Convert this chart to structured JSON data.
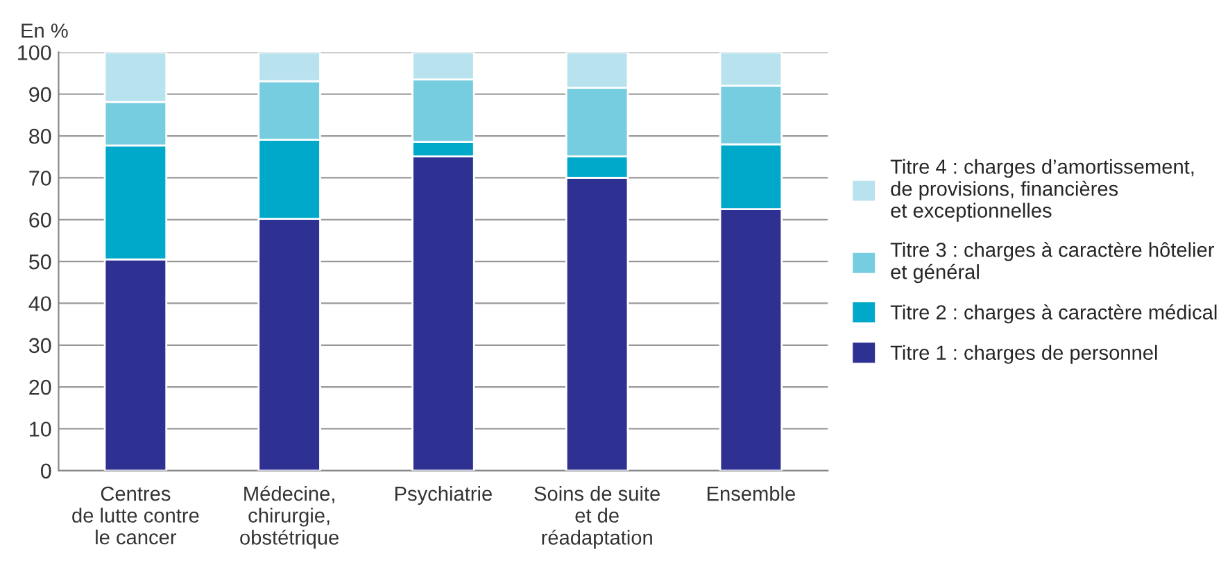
{
  "chart_data": {
    "type": "bar",
    "stacked": true,
    "ylabel": "En %",
    "categories": [
      "Centres\nde lutte contre\nle cancer",
      "Médecine,\nchirurgie,\nobstétrique",
      "Psychiatrie",
      "Soins de suite\net de\nréadaptation",
      "Ensemble"
    ],
    "series": [
      {
        "name": "Titre 1 : charges de personnel",
        "color": "#2e3192",
        "values": [
          50.5,
          60.2,
          75.1,
          70.0,
          62.5
        ]
      },
      {
        "name": "Titre 2 : charges à caractère médical",
        "color": "#00a9c9",
        "values": [
          27.2,
          18.9,
          3.5,
          5.1,
          15.5
        ]
      },
      {
        "name": "Titre 3 : charges à caractère hôtelier\net général",
        "color": "#77cde0",
        "values": [
          10.4,
          14.0,
          14.9,
          16.4,
          14.0
        ]
      },
      {
        "name": "Titre 4 : charges d’amortissement,\nde provisions, financières\net exceptionnelles",
        "color": "#b9e2ef",
        "values": [
          11.9,
          6.9,
          6.5,
          8.5,
          8.0
        ]
      }
    ],
    "ylim": [
      0,
      100
    ],
    "yticks": [
      0,
      10,
      20,
      30,
      40,
      50,
      60,
      70,
      80,
      90,
      100
    ],
    "grid": "y",
    "legend": "right"
  }
}
